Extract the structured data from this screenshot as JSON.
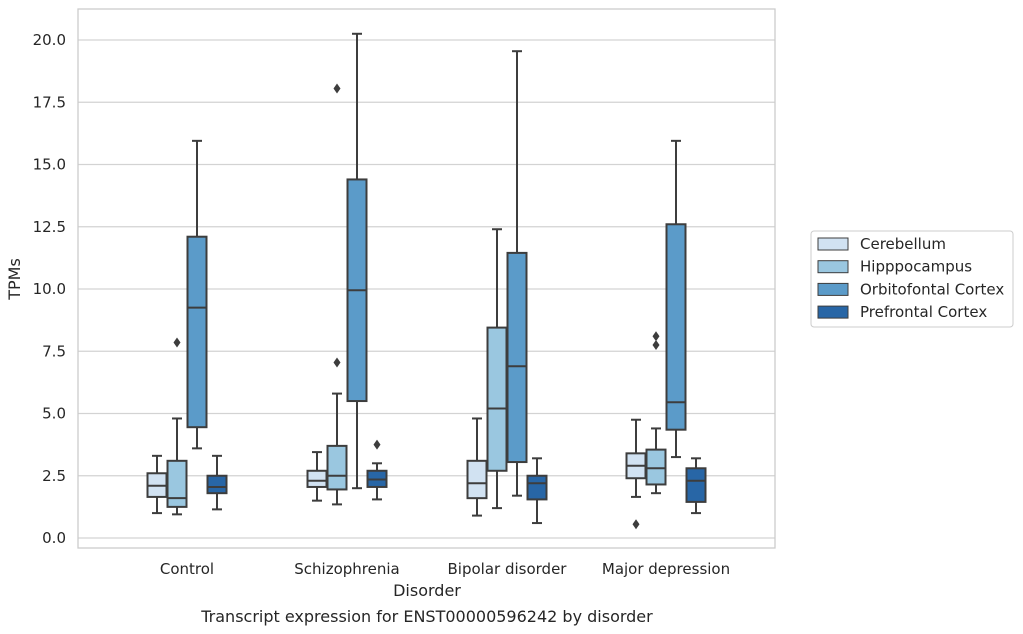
{
  "chart_data": {
    "type": "box",
    "title": "",
    "caption": "Transcript expression for ENST00000596242 by disorder",
    "xlabel": "Disorder",
    "ylabel": "TPMs",
    "ylim": [
      -0.4,
      21.2
    ],
    "yticks": [
      0.0,
      2.5,
      5.0,
      7.5,
      10.0,
      12.5,
      15.0,
      17.5,
      20.0
    ],
    "ytick_labels": [
      "0.0",
      "2.5",
      "5.0",
      "7.5",
      "10.0",
      "12.5",
      "15.0",
      "17.5",
      "20.0"
    ],
    "grid": "horizontal",
    "legend_position": "right",
    "categories": [
      "Control",
      "Schizophrenia",
      "Bipolar disorder",
      "Major depression"
    ],
    "series": [
      {
        "name": "Cerebellum",
        "color": "#d1e2f2",
        "boxes": [
          {
            "whislo": 1.0,
            "q1": 1.65,
            "med": 2.1,
            "q3": 2.6,
            "whishi": 3.3,
            "fliers": []
          },
          {
            "whislo": 1.5,
            "q1": 2.05,
            "med": 2.3,
            "q3": 2.7,
            "whishi": 3.45,
            "fliers": []
          },
          {
            "whislo": 0.9,
            "q1": 1.6,
            "med": 2.2,
            "q3": 3.1,
            "whishi": 4.8,
            "fliers": []
          },
          {
            "whislo": 1.65,
            "q1": 2.4,
            "med": 2.9,
            "q3": 3.4,
            "whishi": 4.75,
            "fliers": [
              0.55
            ]
          }
        ]
      },
      {
        "name": "Hipppocampus",
        "color": "#9ac7e0",
        "boxes": [
          {
            "whislo": 0.95,
            "q1": 1.25,
            "med": 1.6,
            "q3": 3.1,
            "whishi": 4.8,
            "fliers": [
              7.85
            ]
          },
          {
            "whislo": 1.35,
            "q1": 1.95,
            "med": 2.5,
            "q3": 3.7,
            "whishi": 5.8,
            "fliers": [
              7.05,
              18.05
            ]
          },
          {
            "whislo": 1.2,
            "q1": 2.7,
            "med": 5.2,
            "q3": 8.45,
            "whishi": 12.4,
            "fliers": []
          },
          {
            "whislo": 1.8,
            "q1": 2.15,
            "med": 2.8,
            "q3": 3.55,
            "whishi": 4.4,
            "fliers": [
              7.75,
              8.1
            ]
          }
        ]
      },
      {
        "name": "Orbitofontal Cortex",
        "color": "#5b9bc9",
        "boxes": [
          {
            "whislo": 3.6,
            "q1": 4.45,
            "med": 9.25,
            "q3": 12.1,
            "whishi": 15.95,
            "fliers": []
          },
          {
            "whislo": 2.0,
            "q1": 5.5,
            "med": 9.95,
            "q3": 14.4,
            "whishi": 20.25,
            "fliers": []
          },
          {
            "whislo": 1.7,
            "q1": 3.05,
            "med": 6.9,
            "q3": 11.45,
            "whishi": 19.55,
            "fliers": []
          },
          {
            "whislo": 3.25,
            "q1": 4.35,
            "med": 5.45,
            "q3": 12.6,
            "whishi": 15.95,
            "fliers": []
          }
        ]
      },
      {
        "name": "Prefrontal Cortex",
        "color": "#2866a6",
        "boxes": [
          {
            "whislo": 1.15,
            "q1": 1.8,
            "med": 2.05,
            "q3": 2.5,
            "whishi": 3.3,
            "fliers": []
          },
          {
            "whislo": 1.55,
            "q1": 2.05,
            "med": 2.35,
            "q3": 2.7,
            "whishi": 3.0,
            "fliers": [
              3.75
            ]
          },
          {
            "whislo": 0.6,
            "q1": 1.55,
            "med": 2.2,
            "q3": 2.5,
            "whishi": 3.2,
            "fliers": []
          },
          {
            "whislo": 1.0,
            "q1": 1.45,
            "med": 2.3,
            "q3": 2.8,
            "whishi": 3.2,
            "fliers": []
          }
        ]
      }
    ]
  }
}
